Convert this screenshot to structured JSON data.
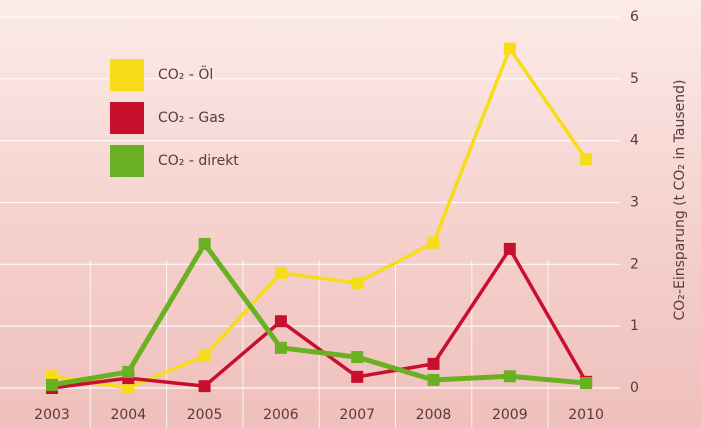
{
  "chart_data": {
    "type": "line",
    "categories": [
      "2003",
      "2004",
      "2005",
      "2006",
      "2007",
      "2008",
      "2009",
      "2010"
    ],
    "series": [
      {
        "name": "CO₂ - Öl",
        "color": "#f7dc1a",
        "values": [
          0.19,
          0.0,
          0.52,
          1.86,
          1.7,
          2.35,
          5.49,
          3.7
        ]
      },
      {
        "name": "CO₂ - Gas",
        "color": "#c8102e",
        "values": [
          0.0,
          0.16,
          0.03,
          1.08,
          0.18,
          0.39,
          2.25,
          0.1
        ]
      },
      {
        "name": "CO₂ - direkt",
        "color": "#6ab023",
        "values": [
          0.05,
          0.26,
          2.33,
          0.65,
          0.5,
          0.13,
          0.19,
          0.08
        ]
      }
    ],
    "y_label": "CO₂-Einsparung (t CO₂ in Tausend)",
    "ylim": [
      0,
      6
    ],
    "yticks": [
      0,
      1,
      2,
      3,
      4,
      5,
      6
    ],
    "grid": true,
    "axis_side": "right"
  }
}
